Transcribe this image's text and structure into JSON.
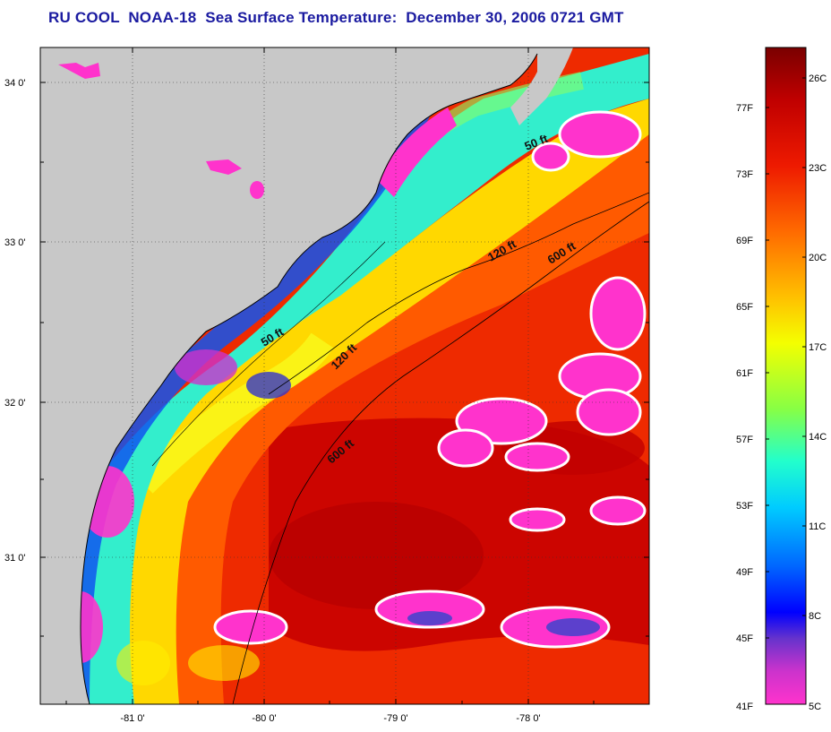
{
  "title": "RU COOL  NOAA-18  Sea Surface Temperature:  December 30, 2006 0721 GMT",
  "map": {
    "lat_labels": [
      "34 0'",
      "33 0'",
      "32 0'",
      "31 0'"
    ],
    "lon_labels": [
      "-81 0'",
      "-80 0'",
      "-79 0'",
      "-78 0'"
    ],
    "contour_labels": [
      "50 ft",
      "50 ft",
      "120 ft",
      "120 ft",
      "600 ft",
      "600 ft"
    ],
    "land_color": "#c8c8c8",
    "cloud_color": "#ff33cc"
  },
  "colorbar": {
    "fahrenheit_labels": [
      "77F",
      "73F",
      "69F",
      "65F",
      "61F",
      "57F",
      "53F",
      "49F",
      "45F",
      "41F"
    ],
    "celsius_labels": [
      "26C",
      "23C",
      "20C",
      "17C",
      "14C",
      "11C",
      "8C",
      "5C"
    ],
    "colors": [
      "#800000",
      "#d00000",
      "#ff3300",
      "#ff8800",
      "#ffdd00",
      "#f0ff00",
      "#88ff44",
      "#33ffcc",
      "#00ddff",
      "#0088ff",
      "#0000ff",
      "#5500cc",
      "#aa33cc",
      "#ff33cc"
    ]
  }
}
